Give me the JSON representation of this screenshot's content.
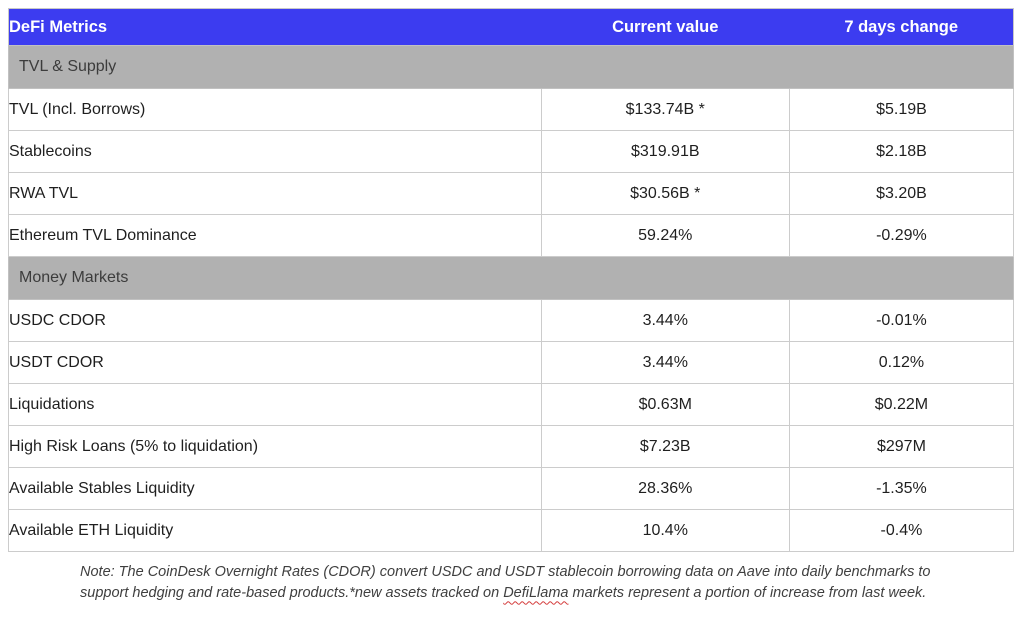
{
  "chart_data": {
    "type": "table",
    "title": "DeFi Metrics",
    "columns": [
      "Current value",
      "7 days change"
    ],
    "sections": [
      {
        "label": "TVL & Supply",
        "rows": [
          {
            "metric": "TVL (Incl. Borrows)",
            "value": "$133.74B *",
            "change": "$5.19B"
          },
          {
            "metric": "Stablecoins",
            "value": "$319.91B",
            "change": "$2.18B"
          },
          {
            "metric": "RWA TVL",
            "value": "$30.56B *",
            "change": "$3.20B"
          },
          {
            "metric": "Ethereum TVL Dominance",
            "value": "59.24%",
            "change": "-0.29%"
          }
        ]
      },
      {
        "label": "Money Markets",
        "rows": [
          {
            "metric": "USDC CDOR",
            "value": "3.44%",
            "change": "-0.01%"
          },
          {
            "metric": "USDT CDOR",
            "value": "3.44%",
            "change": "0.12%"
          },
          {
            "metric": "Liquidations",
            "value": "$0.63M",
            "change": "$0.22M"
          },
          {
            "metric": "High Risk Loans (5% to liquidation)",
            "value": "$7.23B",
            "change": "$297M"
          },
          {
            "metric": "Available Stables Liquidity",
            "value": "28.36%",
            "change": "-1.35%"
          },
          {
            "metric": "Available ETH Liquidity",
            "value": "10.4%",
            "change": "-0.4%"
          }
        ]
      }
    ]
  },
  "note": {
    "part1": "Note: The CoinDesk Overnight Rates (CDOR) convert USDC and USDT stablecoin borrowing data on Aave into daily benchmarks to support hedging and rate-based products.*new assets tracked on ",
    "flagged_word": "DefiLlama",
    "part2": " markets represent a portion of increase from last week."
  },
  "colors": {
    "header_bg": "#3c3cf0",
    "header_text": "#ffffff",
    "section_bg": "#b1b1b1",
    "body_text": "#1f1f1f",
    "spellcheck_underline": "#d43c3c"
  }
}
